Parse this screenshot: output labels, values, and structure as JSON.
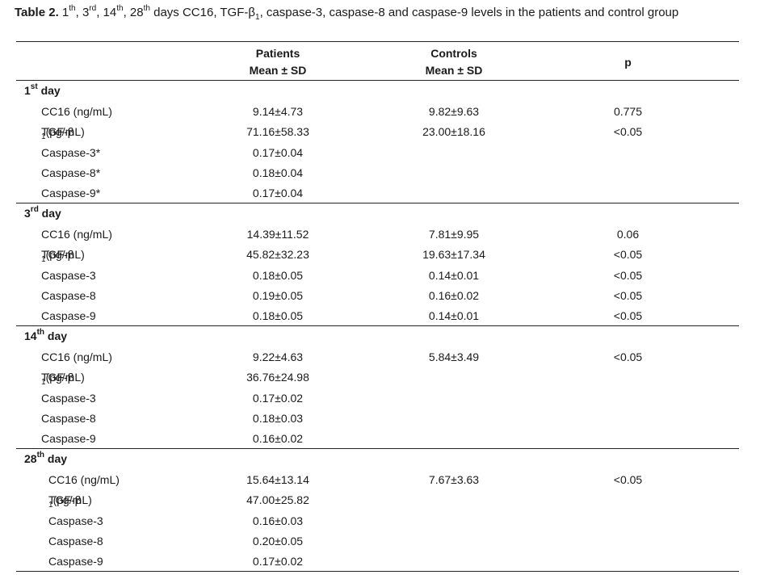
{
  "caption": {
    "label": "Table 2.",
    "parts": [
      " 1",
      "th",
      ", 3",
      "rd",
      ", 14",
      "th",
      ", 28",
      "th",
      " days CC16, TGF-β",
      "1",
      ", caspase-3, caspase-8 and caspase-9 levels in the patients and control group"
    ]
  },
  "headers": {
    "patients": [
      "Patients",
      "Mean ± SD"
    ],
    "controls": [
      "Controls",
      "Mean ± SD"
    ],
    "p": "p"
  },
  "sections": [
    {
      "day_num": "1",
      "day_sup": "st",
      "day_word": " day",
      "rows": [
        {
          "label": "CC16 (ng/mL)",
          "patients": "9.14±4.73",
          "controls": "9.82±9.63",
          "p": "0.775"
        },
        {
          "label": "TGF-β",
          "label_sub": "1",
          "label_tail": " (pg/mL)",
          "patients": "71.16±58.33",
          "controls": "23.00±18.16",
          "p": "<0.05"
        },
        {
          "label": "Caspase-3*",
          "patients": "0.17±0.04",
          "controls": "",
          "p": ""
        },
        {
          "label": "Caspase-8*",
          "patients": "0.18±0.04",
          "controls": "",
          "p": ""
        },
        {
          "label": "Caspase-9*",
          "patients": "0.17±0.04",
          "controls": "",
          "p": ""
        }
      ]
    },
    {
      "day_num": "3",
      "day_sup": "rd",
      "day_word": " day",
      "rows": [
        {
          "label": "CC16 (ng/mL)",
          "patients": "14.39±11.52",
          "controls": "7.81±9.95",
          "p": "0.06"
        },
        {
          "label": "TGF-β",
          "label_sub": "1",
          "label_tail": " (pg/mL)",
          "patients": "45.82±32.23",
          "controls": "19.63±17.34",
          "p": "<0.05"
        },
        {
          "label": "Caspase-3",
          "patients": "0.18±0.05",
          "controls": "0.14±0.01",
          "p": "<0.05"
        },
        {
          "label": "Caspase-8",
          "patients": "0.19±0.05",
          "controls": "0.16±0.02",
          "p": "<0.05"
        },
        {
          "label": "Caspase-9",
          "patients": "0.18±0.05",
          "controls": "0.14±0.01",
          "p": "<0.05"
        }
      ]
    },
    {
      "day_num": "14",
      "day_sup": "th",
      "day_word": " day",
      "rows": [
        {
          "label": "CC16 (ng/mL)",
          "patients": "9.22±4.63",
          "controls": "5.84±3.49",
          "p": "<0.05"
        },
        {
          "label": "TGF-β",
          "label_sub": "1",
          "label_tail": " (pg/mL)",
          "patients": "36.76±24.98",
          "controls": "",
          "p": ""
        },
        {
          "label": "Caspase-3",
          "patients": "0.17±0.02",
          "controls": "",
          "p": ""
        },
        {
          "label": "Caspase-8",
          "patients": "0.18±0.03",
          "controls": "",
          "p": ""
        },
        {
          "label": "Caspase-9",
          "patients": "0.16±0.02",
          "controls": "",
          "p": ""
        }
      ]
    },
    {
      "day_num": "28",
      "day_sup": "th",
      "day_word": " day",
      "rows": [
        {
          "label": "CC16 (ng/mL)",
          "patients": "15.64±13.14",
          "controls": "7.67±3.63",
          "p": "<0.05"
        },
        {
          "label": "TGF-β",
          "label_sub": "1",
          "label_tail": " (pg/mL)",
          "patients": "47.00±25.82",
          "controls": "",
          "p": ""
        },
        {
          "label": "Caspase-3",
          "patients": "0.16±0.03",
          "controls": "",
          "p": ""
        },
        {
          "label": "Caspase-8",
          "patients": "0.20±0.05",
          "controls": "",
          "p": ""
        },
        {
          "label": "Caspase-9",
          "patients": "0.17±0.02",
          "controls": "",
          "p": ""
        }
      ]
    }
  ]
}
